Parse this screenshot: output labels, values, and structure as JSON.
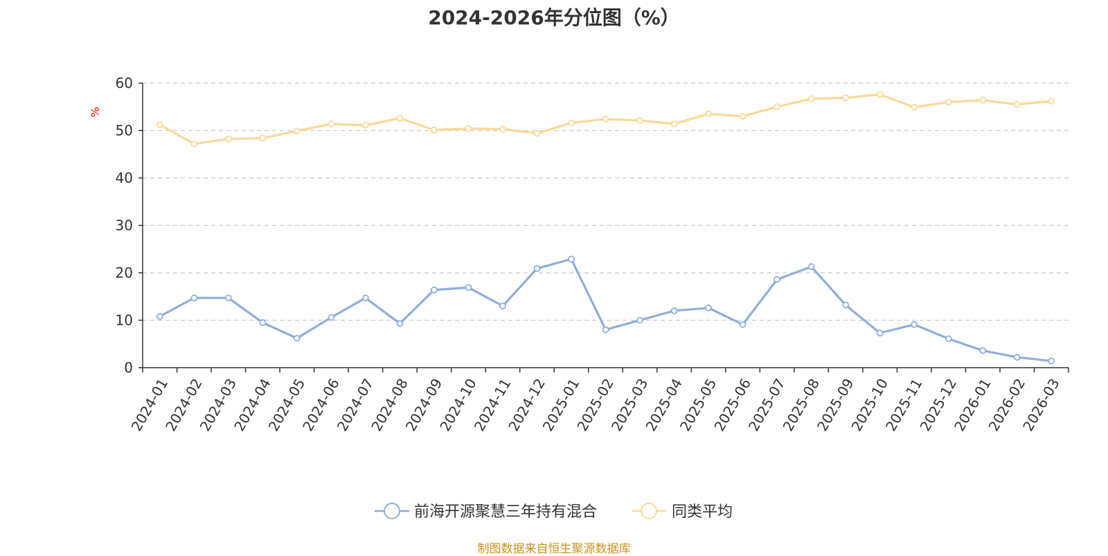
{
  "title": "2024-2026年分位图（%）",
  "source_note": "制图数据来自恒生聚源数据库",
  "colors": {
    "series_fund": "#8eaedb",
    "series_avg": "#fcd898",
    "grid": "#cccccc",
    "axis": "#333333",
    "unit_label": "#ff0000"
  },
  "chart_data": {
    "type": "line",
    "title": "2024-2026年分位图（%）",
    "ylabel": "%",
    "xlabel": "",
    "ylim": [
      0,
      60
    ],
    "yticks": [
      0,
      10,
      20,
      30,
      40,
      50,
      60
    ],
    "grid": "horizontal dashed",
    "legend_position": "bottom-center",
    "categories": [
      "2024-01",
      "2024-02",
      "2024-03",
      "2024-04",
      "2024-05",
      "2024-06",
      "2024-07",
      "2024-08",
      "2024-09",
      "2024-10",
      "2024-11",
      "2024-12",
      "2025-01",
      "2025-02",
      "2025-03",
      "2025-04",
      "2025-05",
      "2025-06",
      "2025-07",
      "2025-08",
      "2025-09",
      "2025-10",
      "2025-11",
      "2025-12",
      "2026-01",
      "2026-02",
      "2026-03"
    ],
    "series": [
      {
        "name": "前海开源聚慧三年持有混合",
        "values": [
          10.8,
          14.7,
          14.7,
          9.5,
          6.2,
          10.6,
          14.7,
          9.3,
          16.4,
          16.9,
          13.0,
          20.9,
          22.9,
          8.0,
          10.0,
          12.0,
          12.6,
          9.1,
          18.6,
          21.3,
          13.2,
          7.3,
          9.1,
          6.1,
          3.6,
          2.2,
          1.4
        ]
      },
      {
        "name": "同类平均",
        "values": [
          51.2,
          47.2,
          48.2,
          48.4,
          49.9,
          51.4,
          51.1,
          52.6,
          50.1,
          50.4,
          50.3,
          49.4,
          51.6,
          52.4,
          52.1,
          51.4,
          53.5,
          53.0,
          55.0,
          56.7,
          56.9,
          57.6,
          54.9,
          56.0,
          56.4,
          55.5,
          56.2
        ]
      }
    ]
  }
}
